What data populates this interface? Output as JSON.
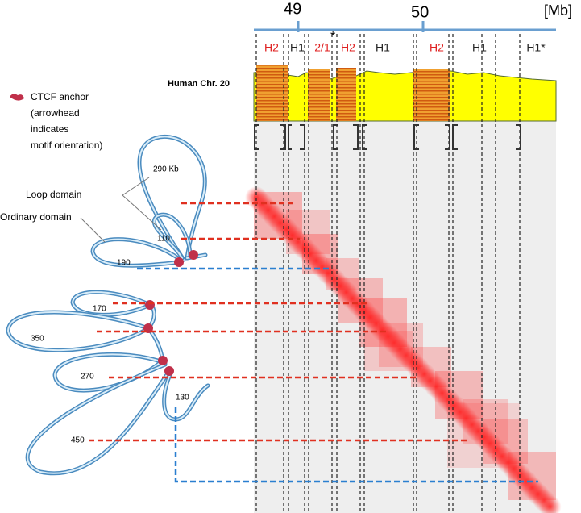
{
  "axis": {
    "ticks": [
      "49",
      "50"
    ],
    "unit": "[Mb]"
  },
  "domains": [
    {
      "label": "H2",
      "color": "#e02020"
    },
    {
      "label": "H1",
      "color": "#222222"
    },
    {
      "label": "2/1",
      "color": "#e02020"
    },
    {
      "label": "H2",
      "color": "#e02020"
    },
    {
      "label": "H1",
      "color": "#222222"
    },
    {
      "label": "H2",
      "color": "#e02020"
    },
    {
      "label": "H1",
      "color": "#222222"
    },
    {
      "label": "H1*",
      "color": "#222222"
    }
  ],
  "asterisk": "*",
  "track_label": "Human Chr. 20",
  "legend": {
    "title": "CTCF anchor",
    "note": [
      "(arrowhead",
      "indicates",
      "motif orientation)"
    ]
  },
  "callouts": [
    "Loop domain",
    "Ordinary domain"
  ],
  "loops": [
    "290 Kb",
    "110",
    "190",
    "170",
    "350",
    "270",
    "130",
    "450"
  ]
}
